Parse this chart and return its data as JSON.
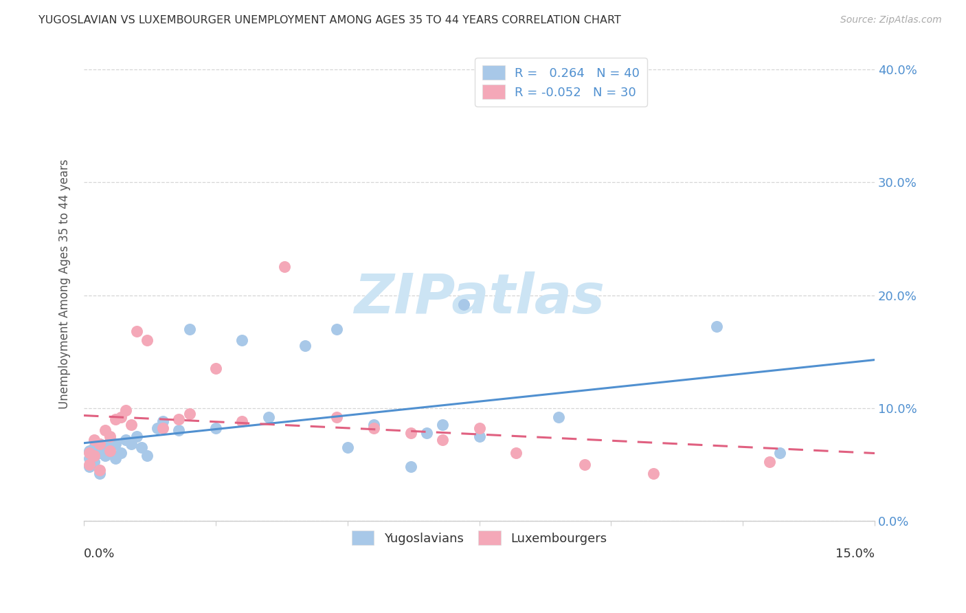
{
  "title": "YUGOSLAVIAN VS LUXEMBOURGER UNEMPLOYMENT AMONG AGES 35 TO 44 YEARS CORRELATION CHART",
  "source": "Source: ZipAtlas.com",
  "ylabel": "Unemployment Among Ages 35 to 44 years",
  "watermark_text": "ZIPatlas",
  "blue_scatter_color": "#a8c8e8",
  "pink_scatter_color": "#f4a8b8",
  "blue_line_color": "#5090d0",
  "pink_line_color": "#e06080",
  "right_tick_color": "#5090d0",
  "grid_color": "#cccccc",
  "title_color": "#333333",
  "source_color": "#aaaaaa",
  "ylabel_color": "#555555",
  "watermark_color": "#cce4f4",
  "xlim": [
    0.0,
    0.15
  ],
  "ylim": [
    0.0,
    0.42
  ],
  "yug_x": [
    0.001,
    0.001,
    0.001,
    0.002,
    0.002,
    0.002,
    0.003,
    0.003,
    0.003,
    0.004,
    0.004,
    0.005,
    0.005,
    0.006,
    0.006,
    0.007,
    0.008,
    0.009,
    0.01,
    0.011,
    0.012,
    0.014,
    0.015,
    0.018,
    0.02,
    0.025,
    0.03,
    0.035,
    0.042,
    0.048,
    0.05,
    0.055,
    0.062,
    0.065,
    0.068,
    0.072,
    0.075,
    0.09,
    0.12,
    0.132
  ],
  "yug_y": [
    0.062,
    0.055,
    0.048,
    0.065,
    0.058,
    0.052,
    0.068,
    0.06,
    0.042,
    0.058,
    0.065,
    0.07,
    0.06,
    0.068,
    0.055,
    0.06,
    0.072,
    0.068,
    0.075,
    0.065,
    0.058,
    0.082,
    0.088,
    0.08,
    0.17,
    0.082,
    0.16,
    0.092,
    0.155,
    0.17,
    0.065,
    0.085,
    0.048,
    0.078,
    0.085,
    0.192,
    0.075,
    0.092,
    0.172,
    0.06
  ],
  "lux_x": [
    0.001,
    0.001,
    0.002,
    0.002,
    0.003,
    0.003,
    0.004,
    0.005,
    0.005,
    0.006,
    0.007,
    0.008,
    0.009,
    0.01,
    0.012,
    0.015,
    0.018,
    0.02,
    0.025,
    0.03,
    0.038,
    0.048,
    0.055,
    0.062,
    0.068,
    0.075,
    0.082,
    0.095,
    0.108,
    0.13
  ],
  "lux_y": [
    0.06,
    0.05,
    0.072,
    0.058,
    0.068,
    0.045,
    0.08,
    0.075,
    0.062,
    0.09,
    0.092,
    0.098,
    0.085,
    0.168,
    0.16,
    0.082,
    0.09,
    0.095,
    0.135,
    0.088,
    0.225,
    0.092,
    0.082,
    0.078,
    0.072,
    0.082,
    0.06,
    0.05,
    0.042,
    0.052
  ],
  "legend1_r": "R = ",
  "legend1_rv": " 0.264",
  "legend1_n": "  N = ",
  "legend1_nv": "40",
  "legend2_r": "R = ",
  "legend2_rv": "-0.052",
  "legend2_n": "  N = ",
  "legend2_nv": "30",
  "bottom_legend_labels": [
    "Yugoslavians",
    "Luxembourgers"
  ]
}
